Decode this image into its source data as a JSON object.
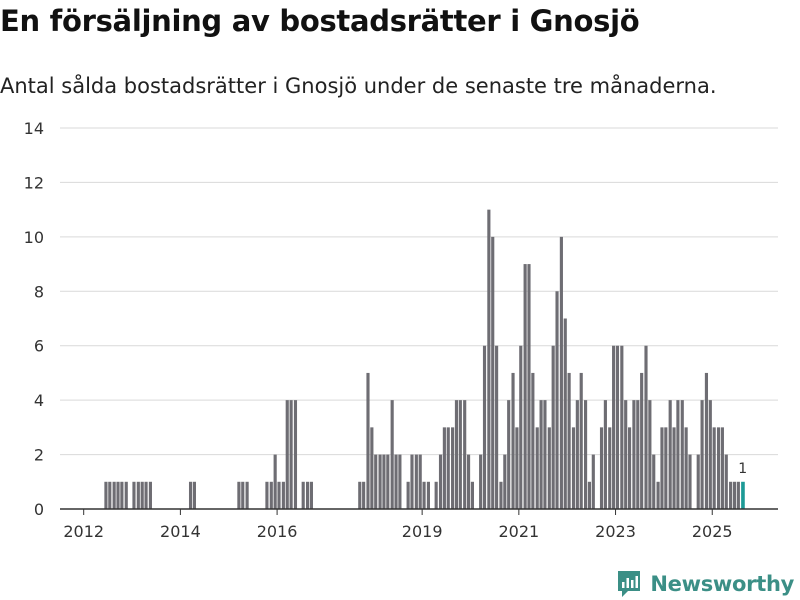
{
  "header": {
    "title": "En försäljning av bostadsrätter i Gnosjö",
    "subtitle": "Antal sålda bostadsrätter i Gnosjö under de senaste tre månaderna."
  },
  "brand": {
    "name": "Newsworthy",
    "color": "#3b8f86"
  },
  "colors": {
    "bar": "#6e6d73",
    "highlight": "#1d9a96",
    "grid": "#d9d9d9",
    "axis": "#333333"
  },
  "chart_data": {
    "type": "bar",
    "title": "En försäljning av bostadsrätter i Gnosjö",
    "xlabel": "",
    "ylabel": "",
    "ylim": [
      0,
      14
    ],
    "yticks": [
      0,
      2,
      4,
      6,
      8,
      10,
      12,
      14
    ],
    "xticks": [
      "2012",
      "2014",
      "2016",
      "2019",
      "2021",
      "2023",
      "2025"
    ],
    "x_range": [
      2011.55,
      2026.4
    ],
    "series": [
      {
        "name": "Antal sålda bostadsrätter",
        "x": [
          2012.5,
          2012.58,
          2012.67,
          2012.75,
          2012.83,
          2012.92,
          2013.08,
          2013.17,
          2013.25,
          2013.33,
          2013.42,
          2014.25,
          2014.33,
          2015.25,
          2015.33,
          2015.42,
          2015.83,
          2015.92,
          2016.0,
          2016.08,
          2016.17,
          2016.25,
          2016.33,
          2016.42,
          2016.58,
          2016.67,
          2016.75,
          2017.75,
          2017.83,
          2017.92,
          2018.0,
          2018.08,
          2018.17,
          2018.25,
          2018.33,
          2018.42,
          2018.5,
          2018.58,
          2018.75,
          2018.83,
          2018.92,
          2019.0,
          2019.08,
          2019.17,
          2019.33,
          2019.42,
          2019.5,
          2019.58,
          2019.67,
          2019.75,
          2019.83,
          2019.92,
          2020.0,
          2020.08,
          2020.25,
          2020.33,
          2020.42,
          2020.5,
          2020.58,
          2020.67,
          2020.75,
          2020.83,
          2020.92,
          2021.0,
          2021.08,
          2021.17,
          2021.25,
          2021.33,
          2021.42,
          2021.5,
          2021.58,
          2021.67,
          2021.75,
          2021.83,
          2021.92,
          2022.0,
          2022.08,
          2022.17,
          2022.25,
          2022.33,
          2022.42,
          2022.5,
          2022.58,
          2022.75,
          2022.83,
          2022.92,
          2023.0,
          2023.08,
          2023.17,
          2023.25,
          2023.33,
          2023.42,
          2023.5,
          2023.58,
          2023.67,
          2023.75,
          2023.83,
          2023.92,
          2024.0,
          2024.08,
          2024.17,
          2024.25,
          2024.33,
          2024.42,
          2024.5,
          2024.58,
          2024.75,
          2024.83,
          2024.92,
          2025.0,
          2025.08,
          2025.17,
          2025.25,
          2025.33,
          2025.42,
          2025.5,
          2025.58
        ],
        "values": [
          1,
          1,
          1,
          1,
          1,
          1,
          1,
          1,
          1,
          1,
          1,
          1,
          1,
          1,
          1,
          1,
          1,
          1,
          2,
          1,
          1,
          4,
          4,
          4,
          1,
          1,
          1,
          1,
          1,
          5,
          3,
          2,
          2,
          2,
          2,
          4,
          2,
          2,
          1,
          2,
          2,
          2,
          1,
          1,
          1,
          2,
          3,
          3,
          3,
          4,
          4,
          4,
          2,
          1,
          2,
          6,
          11,
          10,
          6,
          1,
          2,
          4,
          5,
          3,
          6,
          9,
          9,
          5,
          3,
          4,
          4,
          3,
          6,
          8,
          10,
          7,
          5,
          3,
          4,
          5,
          4,
          1,
          2,
          3,
          4,
          3,
          6,
          6,
          6,
          4,
          3,
          4,
          4,
          5,
          6,
          4,
          2,
          1,
          3,
          3,
          4,
          3,
          4,
          4,
          3,
          2,
          2,
          4,
          5,
          4,
          3,
          3,
          3,
          2,
          1,
          1,
          1
        ]
      }
    ],
    "highlight": {
      "x": 2025.67,
      "value": 1,
      "label": "1"
    }
  }
}
